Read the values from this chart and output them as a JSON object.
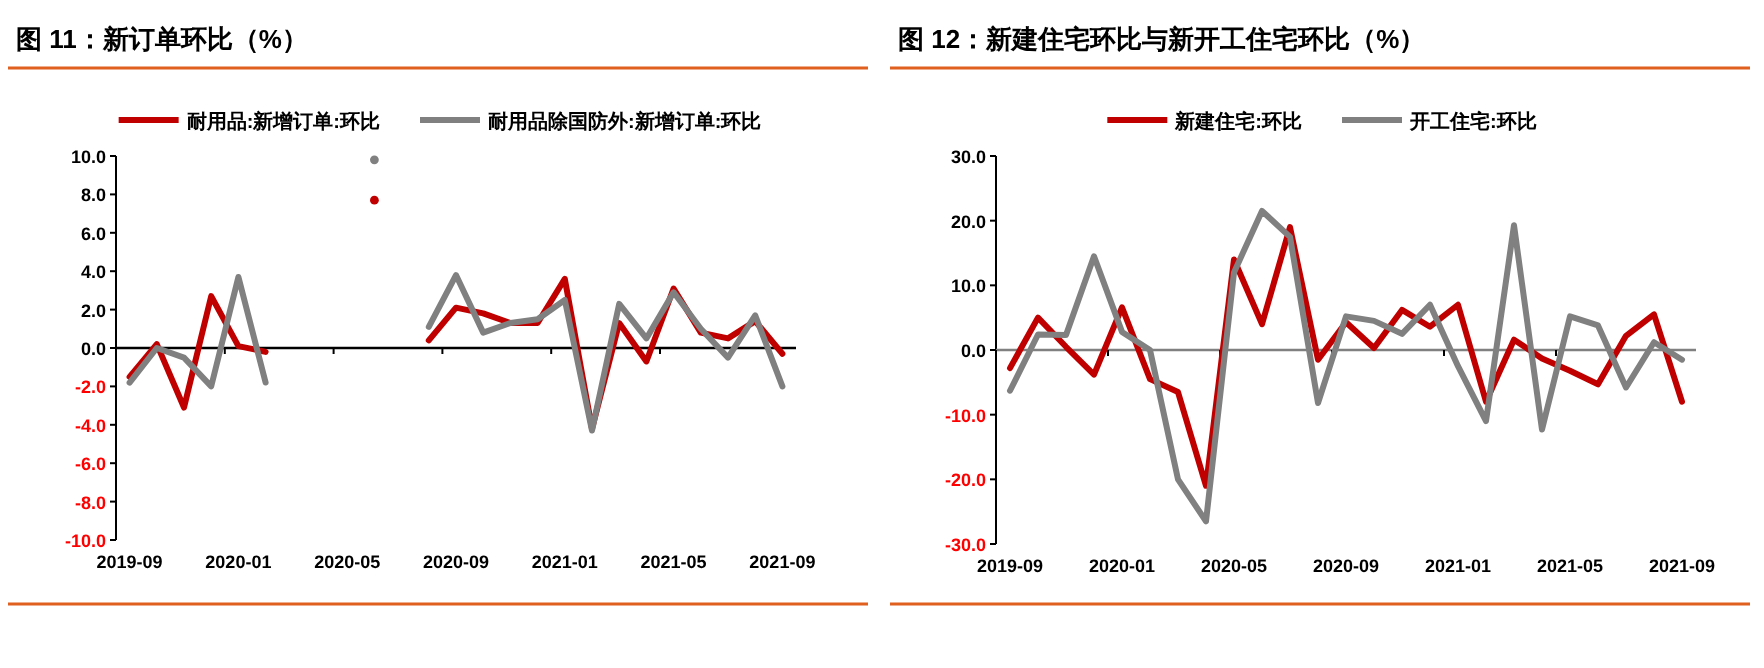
{
  "chart_data": [
    {
      "type": "line",
      "title": "图 11：新订单环比（%）",
      "categories": [
        "2019-09",
        null,
        null,
        null,
        "2020-01",
        null,
        null,
        null,
        "2020-05",
        null,
        null,
        null,
        "2020-09",
        null,
        null,
        null,
        "2021-01",
        null,
        null,
        null,
        "2021-05",
        null,
        null,
        null,
        "2021-09"
      ],
      "series": [
        {
          "name": "耐用品:新增订单:环比",
          "color": "#c00000",
          "values": [
            -1.5,
            0.2,
            -3.1,
            2.7,
            0.1,
            -0.2,
            null,
            null,
            null,
            7.7,
            null,
            0.4,
            2.1,
            1.8,
            1.3,
            1.3,
            3.6,
            -4.2,
            1.3,
            -0.7,
            3.1,
            0.8,
            0.5,
            1.4,
            -0.3
          ]
        },
        {
          "name": "耐用品除国防外:新增订单:环比",
          "color": "#808080",
          "values": [
            -1.8,
            0.0,
            -0.5,
            -2.0,
            3.7,
            -1.8,
            null,
            null,
            null,
            9.8,
            null,
            1.1,
            3.8,
            0.8,
            1.3,
            1.5,
            2.5,
            -4.3,
            2.3,
            0.5,
            2.9,
            1.0,
            -0.5,
            1.7,
            -2.0
          ]
        }
      ],
      "ylim": [
        -10,
        10
      ],
      "yticks": [
        {
          "value": -10,
          "label": "-10.0"
        },
        {
          "value": -8,
          "label": "-8.0"
        },
        {
          "value": -6,
          "label": "-6.0"
        },
        {
          "value": -4,
          "label": "-4.0"
        },
        {
          "value": -2,
          "label": "-2.0"
        },
        {
          "value": 0,
          "label": "0.0"
        },
        {
          "value": 2,
          "label": "2.0"
        },
        {
          "value": 4,
          "label": "4.0"
        },
        {
          "value": 6,
          "label": "6.0"
        },
        {
          "value": 8,
          "label": "8.0"
        },
        {
          "value": 10,
          "label": "10.0"
        }
      ],
      "ref_lines": [
        {
          "axis": "y",
          "value": 0,
          "color": "#000000"
        }
      ],
      "legend": "top"
    },
    {
      "type": "line",
      "title": "图 12：新建住宅环比与新开工住宅环比（%）",
      "categories": [
        "2019-09",
        null,
        null,
        null,
        "2020-01",
        null,
        null,
        null,
        "2020-05",
        null,
        null,
        null,
        "2020-09",
        null,
        null,
        null,
        "2021-01",
        null,
        null,
        null,
        "2021-05",
        null,
        null,
        null,
        "2021-09"
      ],
      "series": [
        {
          "name": "新建住宅:环比",
          "color": "#c00000",
          "values": [
            -2.8,
            5.0,
            0.5,
            -3.8,
            6.6,
            -4.5,
            -6.5,
            -21.0,
            14.0,
            4.0,
            19.0,
            -1.5,
            4.3,
            0.3,
            6.2,
            3.6,
            7.0,
            -8.0,
            1.6,
            -1.3,
            -3.2,
            -5.3,
            2.2,
            5.5,
            -8.0
          ]
        },
        {
          "name": "开工住宅:环比",
          "color": "#808080",
          "values": [
            -6.3,
            2.4,
            2.3,
            14.5,
            2.8,
            0.0,
            -20.0,
            -26.5,
            12.0,
            21.5,
            17.5,
            -8.2,
            5.2,
            4.5,
            2.5,
            7.0,
            -2.5,
            -11.0,
            19.3,
            -12.3,
            5.2,
            3.8,
            -5.8,
            1.2,
            -1.5
          ]
        }
      ],
      "ylim": [
        -30,
        30
      ],
      "yticks": [
        {
          "value": -30,
          "label": "-30.0"
        },
        {
          "value": -20,
          "label": "-20.0"
        },
        {
          "value": -10,
          "label": "-10.0"
        },
        {
          "value": 0,
          "label": "0.0"
        },
        {
          "value": 10,
          "label": "10.0"
        },
        {
          "value": 20,
          "label": "20.0"
        },
        {
          "value": 30,
          "label": "30.0"
        }
      ],
      "ref_lines": [
        {
          "axis": "y",
          "value": 0,
          "color": "#808080"
        }
      ],
      "legend": "top"
    }
  ]
}
